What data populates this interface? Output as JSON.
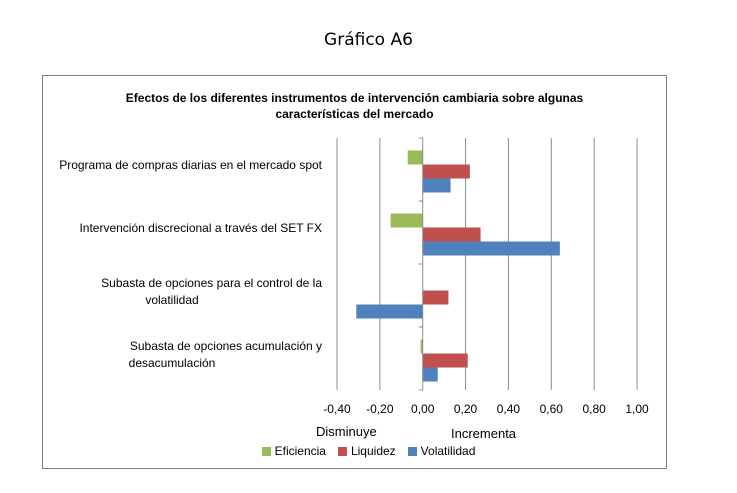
{
  "page_title": "Gráfico A6",
  "chart_data": {
    "type": "bar",
    "orientation": "horizontal",
    "title_lines": [
      "Efectos de los diferentes instrumentos de intervención  cambiaria sobre algunas",
      "características del mercado"
    ],
    "categories": [
      [
        "Programa de compras diarias en el mercado spot"
      ],
      [
        "Intervención discrecional a través del SET FX"
      ],
      [
        "Subasta de opciones para el control de la",
        "volatilidad"
      ],
      [
        "Subasta de opciones acumulación y",
        "desacumulación"
      ]
    ],
    "series": [
      {
        "name": "Eficiencia",
        "color": "#9bbb59",
        "values": [
          -0.07,
          -0.15,
          0.0,
          -0.01
        ]
      },
      {
        "name": "Liquidez",
        "color": "#c0504d",
        "values": [
          0.22,
          0.27,
          0.12,
          0.21
        ]
      },
      {
        "name": "Volatilidad",
        "color": "#4f81bd",
        "values": [
          0.13,
          0.64,
          -0.31,
          0.07
        ]
      }
    ],
    "xlim": [
      -0.4,
      1.0
    ],
    "ticks": [
      -0.4,
      -0.2,
      0.0,
      0.2,
      0.4,
      0.6,
      0.8,
      1.0
    ],
    "tick_labels": [
      "-0,40",
      "-0,20",
      "0,00",
      "0,20",
      "0,40",
      "0,60",
      "0,80",
      "1,00"
    ],
    "x_annotations": {
      "left": "Disminuye",
      "right": "Incrementa"
    },
    "grid": "vertical",
    "legend_position": "bottom"
  }
}
